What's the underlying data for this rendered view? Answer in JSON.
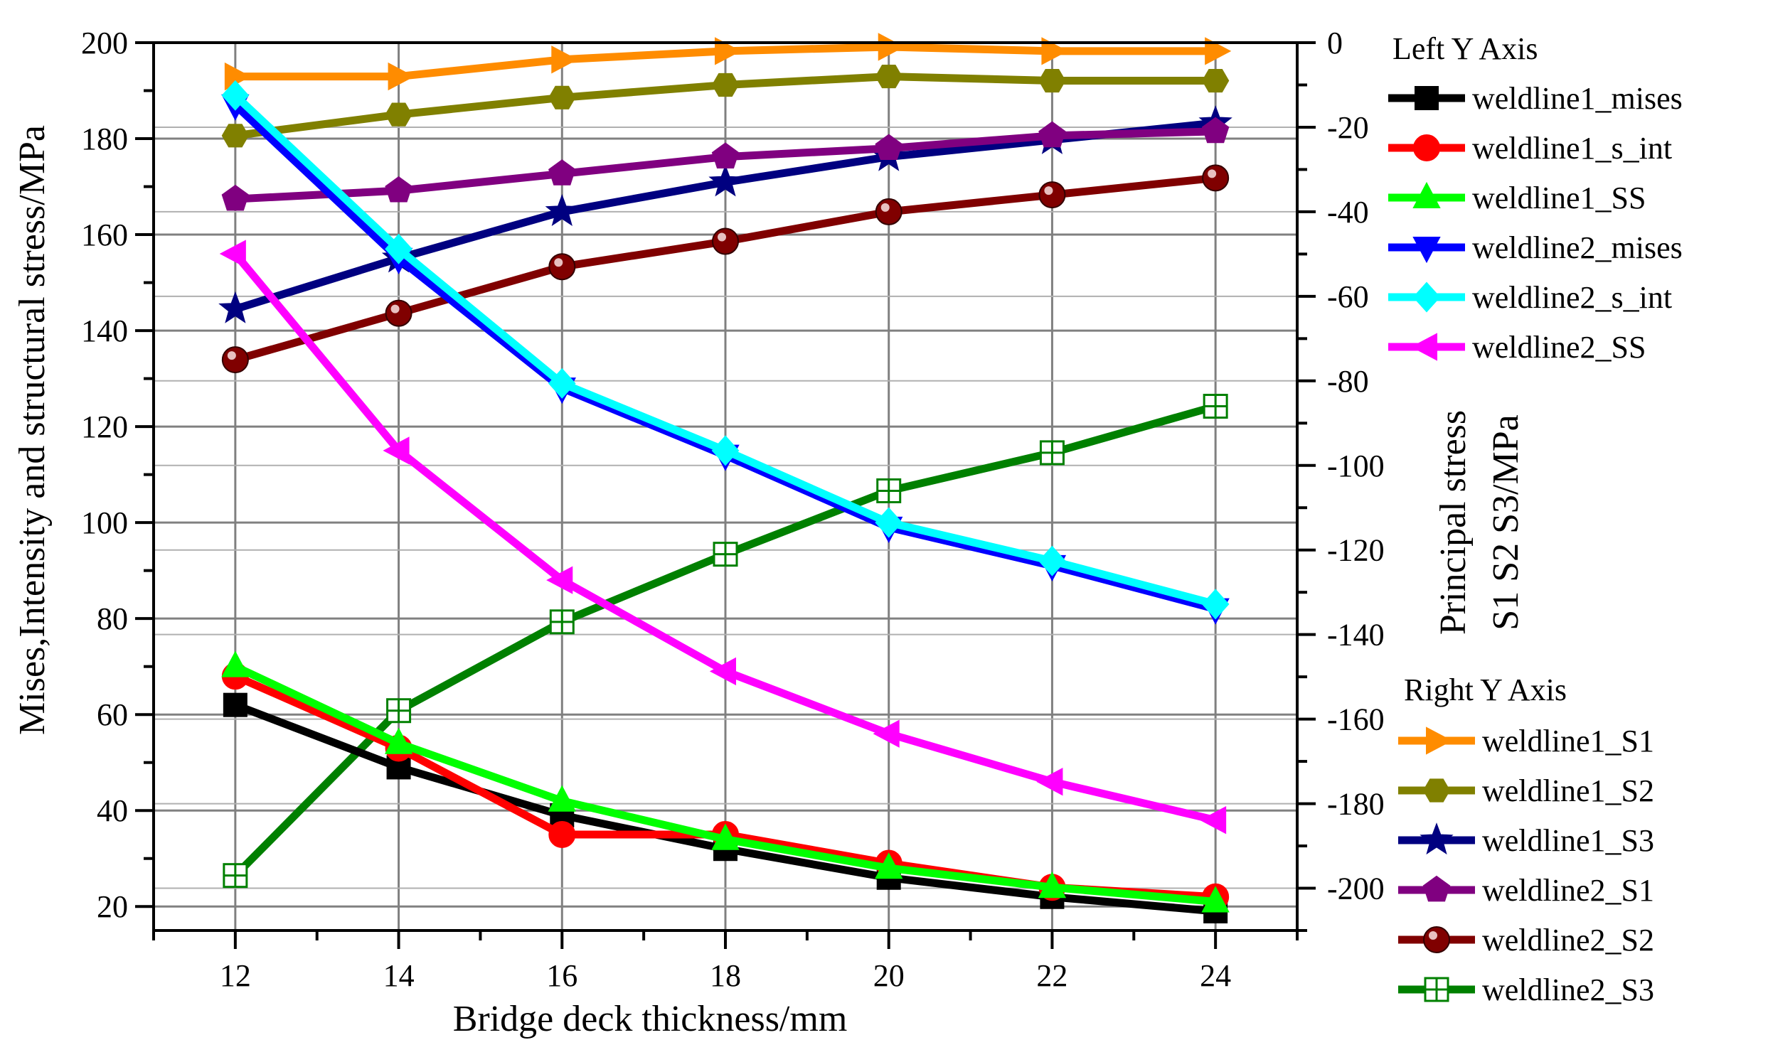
{
  "chart_data": {
    "type": "line",
    "xlabel": "Bridge deck thickness/mm",
    "ylabel_left": "Mises,Intensity and structural stress/MPa",
    "ylabel_right_line1": "Principal stress",
    "ylabel_right_line2": "S1 S2 S3/MPa",
    "x": [
      12,
      14,
      16,
      18,
      20,
      22,
      24
    ],
    "xlim": [
      11,
      25
    ],
    "xticks": [
      12,
      14,
      16,
      18,
      20,
      22,
      24
    ],
    "ylim_left": [
      15,
      200
    ],
    "yticks_left": [
      20,
      40,
      60,
      80,
      100,
      120,
      140,
      160,
      180,
      200
    ],
    "ylim_right": [
      -210,
      0
    ],
    "yticks_right": [
      0,
      -20,
      -40,
      -60,
      -80,
      -100,
      -120,
      -140,
      -160,
      -180,
      -200
    ],
    "grid": true,
    "legend_left_heading": "Left Y Axis",
    "legend_right_heading": "Right Y Axis",
    "series_left": [
      {
        "name": "weldline1_mises",
        "color": "#000000",
        "marker": "square",
        "values": [
          62,
          49,
          39,
          32,
          26,
          22,
          19
        ]
      },
      {
        "name": "weldline1_s_int",
        "color": "#ff0000",
        "marker": "circle",
        "values": [
          68,
          53,
          35,
          35,
          29,
          24,
          22
        ]
      },
      {
        "name": "weldline1_SS",
        "color": "#00ff00",
        "marker": "triangle-up",
        "values": [
          70,
          54,
          42,
          34,
          28,
          24,
          21
        ]
      },
      {
        "name": "weldline2_mises",
        "color": "#0000ff",
        "marker": "triangle-down",
        "values": [
          187,
          155,
          128,
          114,
          99,
          91,
          82
        ]
      },
      {
        "name": "weldline2_s_int",
        "color": "#00ffff",
        "marker": "diamond",
        "values": [
          189,
          157,
          129,
          115,
          100,
          92,
          83
        ]
      },
      {
        "name": "weldline2_SS",
        "color": "#ff00ff",
        "marker": "triangle-left",
        "values": [
          156,
          115,
          88,
          69,
          56,
          46,
          38
        ]
      }
    ],
    "series_right": [
      {
        "name": "weldline1_S1",
        "color": "#ff8c00",
        "marker": "triangle-right",
        "values": [
          -8,
          -8,
          -4,
          -2,
          -1,
          -2,
          -2
        ]
      },
      {
        "name": "weldline1_S2",
        "color": "#808000",
        "marker": "hexagon",
        "values": [
          -22,
          -17,
          -13,
          -10,
          -8,
          -9,
          -9
        ]
      },
      {
        "name": "weldline1_S3",
        "color": "#000080",
        "marker": "star",
        "values": [
          -63,
          -51,
          -40,
          -33,
          -27,
          -23,
          -19
        ]
      },
      {
        "name": "weldline2_S1",
        "color": "#800080",
        "marker": "pentagon",
        "values": [
          -37,
          -35,
          -31,
          -27,
          -25,
          -22,
          -21
        ]
      },
      {
        "name": "weldline2_S2",
        "color": "#800000",
        "marker": "sphere",
        "values": [
          -75,
          -64,
          -53,
          -47,
          -40,
          -36,
          -32
        ]
      },
      {
        "name": "weldline2_S3",
        "color": "#008000",
        "marker": "square-cross",
        "values": [
          -197,
          -158,
          -137,
          -121,
          -106,
          -97,
          -86
        ]
      }
    ]
  }
}
